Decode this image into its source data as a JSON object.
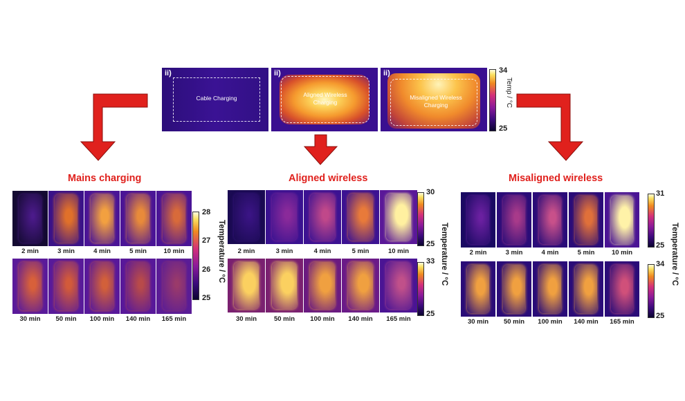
{
  "top_row": {
    "panels": [
      {
        "tag": "ii)",
        "label": "Cable Charging"
      },
      {
        "tag": "ii)",
        "label": "Aligned Wireless Charging"
      },
      {
        "tag": "ii)",
        "label": "Misaligned Wireless Charging"
      }
    ],
    "colorbar": {
      "max": "34",
      "min": "25",
      "unit": "Temp / °C"
    }
  },
  "sections": [
    {
      "title": "Mains charging",
      "row1_times": [
        "2 min",
        "3 min",
        "4 min",
        "5 min",
        "10 min"
      ],
      "row2_times": [
        "30 min",
        "50 min",
        "100 min",
        "140 min",
        "165 min"
      ],
      "colorbar": {
        "ticks": [
          "28",
          "27",
          "26",
          "25"
        ],
        "unit": "Temperature / °C"
      }
    },
    {
      "title": "Aligned wireless",
      "row1_times": [
        "2 min",
        "3 min",
        "4 min",
        "5 min",
        "10 min"
      ],
      "row2_times": [
        "30 min",
        "50 min",
        "100 min",
        "140 min",
        "165 min"
      ],
      "colorbar_top": {
        "max": "30",
        "min": "25"
      },
      "colorbar_bottom": {
        "max": "33",
        "min": "25"
      },
      "unit": "Temperature / °C"
    },
    {
      "title": "Misaligned wireless",
      "row1_times": [
        "2 min",
        "3 min",
        "4 min",
        "5 min",
        "10 min"
      ],
      "row2_times": [
        "30 min",
        "50 min",
        "100 min",
        "140 min",
        "165 min"
      ],
      "colorbar_top": {
        "max": "31",
        "min": "25"
      },
      "colorbar_bottom": {
        "max": "34",
        "min": "25"
      },
      "unit": "Temperature / °C"
    }
  ],
  "colors": {
    "arrow": "#e0211d",
    "title": "#e0211d",
    "cold": "#1a0a5e",
    "warm": "#f0822a"
  }
}
